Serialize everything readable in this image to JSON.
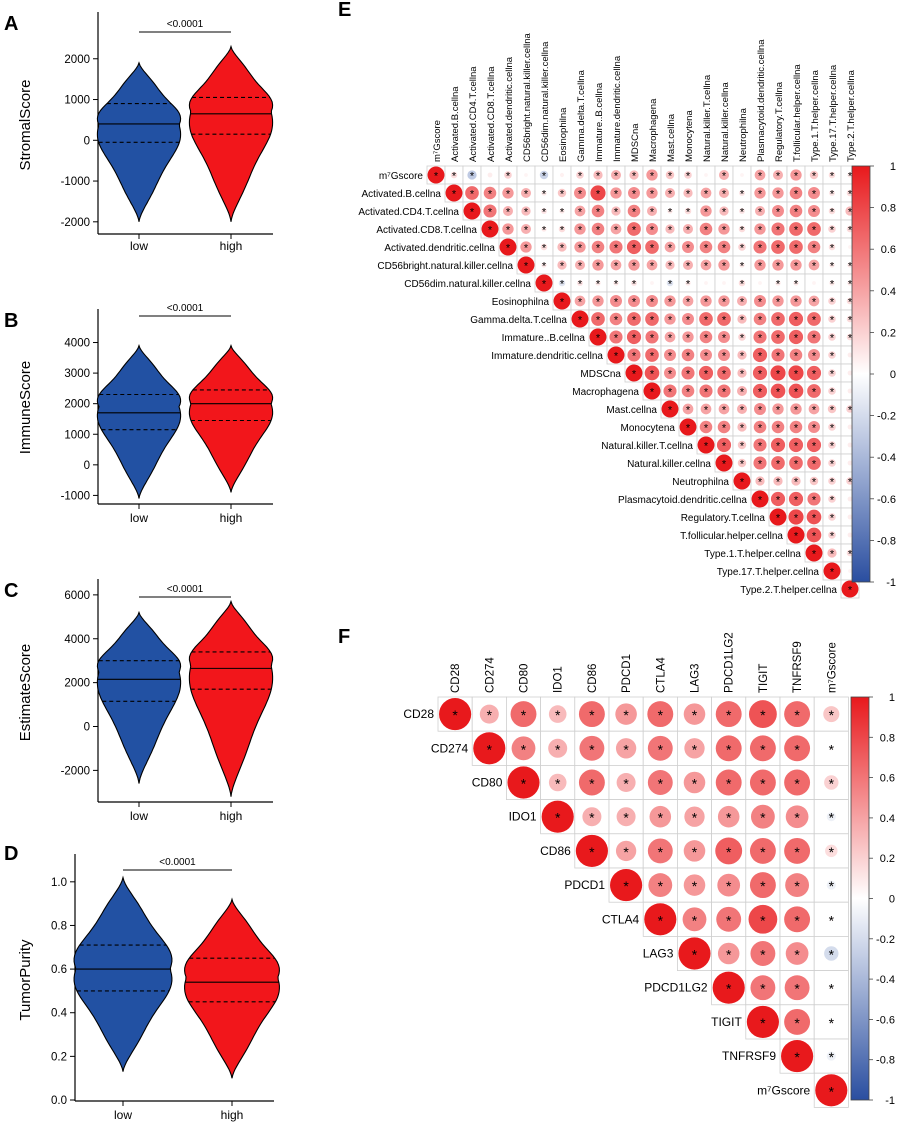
{
  "colors": {
    "low": "#2251a3",
    "high": "#f2161b",
    "pos": "#e8191c",
    "neg": "#2a4ea0",
    "grid": "#cfcfcf",
    "ink": "#000000"
  },
  "chart_data": [
    {
      "panel": "A",
      "type": "violin",
      "ylabel": "StromalScore",
      "categories": [
        "low",
        "high"
      ],
      "yticks": [
        "2000",
        "1000",
        "0",
        "-1000",
        "-2000"
      ],
      "ylim": [
        -2250,
        3000
      ],
      "pvalue": "<0.0001",
      "groups": [
        {
          "name": "low",
          "min": -2000,
          "max": 1900,
          "q1": -50,
          "median": 400,
          "q3": 900,
          "mode": 380,
          "width": 1
        },
        {
          "name": "high",
          "min": -2000,
          "max": 2300,
          "q1": 150,
          "median": 650,
          "q3": 1050,
          "mode": 700,
          "width": 1
        }
      ]
    },
    {
      "panel": "B",
      "type": "violin",
      "ylabel": "ImmuneScore",
      "categories": [
        "low",
        "high"
      ],
      "yticks": [
        "4000",
        "3000",
        "2000",
        "1000",
        "0",
        "-1000"
      ],
      "ylim": [
        -1150,
        4900
      ],
      "pvalue": "<0.0001",
      "groups": [
        {
          "name": "low",
          "min": -1100,
          "max": 3900,
          "q1": 1150,
          "median": 1700,
          "q3": 2300,
          "mode": 1900,
          "width": 1
        },
        {
          "name": "high",
          "min": -900,
          "max": 3900,
          "q1": 1450,
          "median": 2000,
          "q3": 2450,
          "mode": 2000,
          "width": 1
        }
      ]
    },
    {
      "panel": "C",
      "type": "violin",
      "ylabel": "EstimateScore",
      "categories": [
        "low",
        "high"
      ],
      "yticks": [
        "6000",
        "4000",
        "2000",
        "0",
        "-2000"
      ],
      "ylim": [
        -3350,
        6450
      ],
      "pvalue": "<0.0001",
      "groups": [
        {
          "name": "low",
          "min": -2600,
          "max": 5200,
          "q1": 1150,
          "median": 2150,
          "q3": 3000,
          "mode": 2500,
          "width": 1
        },
        {
          "name": "high",
          "min": -3200,
          "max": 5700,
          "q1": 1700,
          "median": 2650,
          "q3": 3400,
          "mode": 2800,
          "width": 1
        }
      ]
    },
    {
      "panel": "D",
      "type": "violin",
      "ylabel": "TumorPurity",
      "categories": [
        "low",
        "high"
      ],
      "yticks": [
        "1.0",
        "0.8",
        "0.6",
        "0.4",
        "0.2",
        "0.0"
      ],
      "ylim": [
        0,
        1.1
      ],
      "pvalue": "<0.0001",
      "groups": [
        {
          "name": "low",
          "min": 0.13,
          "max": 1.02,
          "q1": 0.5,
          "median": 0.6,
          "q3": 0.71,
          "mode": 0.6,
          "width": 1
        },
        {
          "name": "high",
          "min": 0.1,
          "max": 0.92,
          "q1": 0.45,
          "median": 0.54,
          "q3": 0.65,
          "mode": 0.56,
          "width": 0.97
        }
      ]
    },
    {
      "panel": "E",
      "type": "heatmap",
      "labels": [
        "m⁷Gscore",
        "Activated.B.cellna",
        "Activated.CD4.T.cellna",
        "Activated.CD8.T.cellna",
        "Activated.dendritic.cellna",
        "CD56bright.natural.killer.cellna",
        "CD56dim.natural.killer.cellna",
        "Eosinophilna",
        "Gamma.delta.T.cellna",
        "Immature..B.cellna",
        "Immature.dendritic.cellna",
        "MDSCna",
        "Macrophagena",
        "Mast.cellna",
        "Monocytena",
        "Natural.killer.T.cellna",
        "Natural.killer.cellna",
        "Neutrophilna",
        "Plasmacytoid.dendritic.cellna",
        "Regulatory.T.cellna",
        "T.follicular.helper.cellna",
        "Type.1.T.helper.cellna",
        "Type.17.T.helper.cellna",
        "Type.2.T.helper.cellna"
      ],
      "scale_ticks": [
        "1",
        "0.8",
        "0.6",
        "0.4",
        "0.2",
        "0",
        "-0.2",
        "-0.4",
        "-0.6",
        "-0.8",
        "-1"
      ],
      "rows": [
        [
          1,
          0.15,
          -0.3,
          0.08,
          0.2,
          0.05,
          -0.25,
          0.06,
          0.2,
          0.3,
          0.35,
          0.3,
          0.45,
          0.25,
          0.2,
          0.05,
          0.35,
          0.05,
          0.4,
          0.35,
          0.45,
          0.25,
          0.15,
          0.1
        ],
        [
          null,
          1,
          0.65,
          0.55,
          0.45,
          0.35,
          0.1,
          0.25,
          0.5,
          0.8,
          0.45,
          0.5,
          0.45,
          0.35,
          0.3,
          0.4,
          0.35,
          0.12,
          0.45,
          0.45,
          0.55,
          0.5,
          0.12,
          0.15
        ],
        [
          null,
          null,
          1,
          0.6,
          0.35,
          0.3,
          0.12,
          0.1,
          0.4,
          0.55,
          0.3,
          0.55,
          0.35,
          0.1,
          0.15,
          0.45,
          0.3,
          0.12,
          0.35,
          0.5,
          0.55,
          0.5,
          0.15,
          0.3
        ],
        [
          null,
          null,
          null,
          1,
          0.45,
          0.35,
          0.1,
          0.15,
          0.45,
          0.55,
          0.4,
          0.65,
          0.5,
          0.3,
          0.35,
          0.55,
          0.45,
          0.15,
          0.45,
          0.6,
          0.65,
          0.65,
          0.2,
          0.15
        ],
        [
          null,
          null,
          null,
          null,
          1,
          0.45,
          0.15,
          0.3,
          0.45,
          0.55,
          0.6,
          0.7,
          0.65,
          0.4,
          0.5,
          0.55,
          0.55,
          0.2,
          0.6,
          0.65,
          0.65,
          0.55,
          0.15,
          0.05
        ],
        [
          null,
          null,
          null,
          null,
          null,
          1,
          0.1,
          0.3,
          0.35,
          0.45,
          0.4,
          0.45,
          0.4,
          0.3,
          0.35,
          0.4,
          0.45,
          0.1,
          0.45,
          0.45,
          0.45,
          0.4,
          0.1,
          0.1
        ],
        [
          null,
          null,
          null,
          null,
          null,
          null,
          1,
          -0.15,
          0.12,
          0.1,
          0.1,
          0.12,
          0.05,
          -0.15,
          0.1,
          0.05,
          0.05,
          0.15,
          0.05,
          0.1,
          0.1,
          0.05,
          0.1,
          0.1
        ],
        [
          null,
          null,
          null,
          null,
          null,
          null,
          null,
          1,
          0.4,
          0.45,
          0.5,
          0.5,
          0.5,
          0.45,
          0.4,
          0.45,
          0.45,
          0.35,
          0.5,
          0.45,
          0.45,
          0.4,
          0.2,
          0.15
        ],
        [
          null,
          null,
          null,
          null,
          null,
          null,
          null,
          null,
          1,
          0.65,
          0.55,
          0.65,
          0.65,
          0.45,
          0.5,
          0.65,
          0.65,
          0.3,
          0.55,
          0.65,
          0.7,
          0.65,
          0.2,
          0.15
        ],
        [
          null,
          null,
          null,
          null,
          null,
          null,
          null,
          null,
          null,
          1,
          0.6,
          0.7,
          0.6,
          0.4,
          0.45,
          0.55,
          0.5,
          0.2,
          0.6,
          0.65,
          0.7,
          0.6,
          0.2,
          0.15
        ],
        [
          null,
          null,
          null,
          null,
          null,
          null,
          null,
          null,
          null,
          null,
          1,
          0.6,
          0.65,
          0.5,
          0.55,
          0.5,
          0.5,
          0.3,
          0.7,
          0.6,
          0.55,
          0.5,
          0.2,
          0.08
        ],
        [
          null,
          null,
          null,
          null,
          null,
          null,
          null,
          null,
          null,
          null,
          null,
          1,
          0.75,
          0.5,
          0.6,
          0.7,
          0.65,
          0.3,
          0.7,
          0.8,
          0.8,
          0.7,
          0.2,
          0.08
        ],
        [
          null,
          null,
          null,
          null,
          null,
          null,
          null,
          null,
          null,
          null,
          null,
          null,
          1,
          0.6,
          0.55,
          0.6,
          0.6,
          0.35,
          0.7,
          0.75,
          0.75,
          0.65,
          0.2,
          0.08
        ],
        [
          null,
          null,
          null,
          null,
          null,
          null,
          null,
          null,
          null,
          null,
          null,
          null,
          null,
          1,
          0.4,
          0.4,
          0.4,
          0.35,
          0.5,
          0.45,
          0.45,
          0.4,
          0.25,
          0.2
        ],
        [
          null,
          null,
          null,
          null,
          null,
          null,
          null,
          null,
          null,
          null,
          null,
          null,
          null,
          null,
          1,
          0.55,
          0.55,
          0.3,
          0.55,
          0.55,
          0.55,
          0.5,
          0.2,
          0.08
        ],
        [
          null,
          null,
          null,
          null,
          null,
          null,
          null,
          null,
          null,
          null,
          null,
          null,
          null,
          null,
          null,
          1,
          0.7,
          0.25,
          0.6,
          0.7,
          0.7,
          0.7,
          0.2,
          0.08
        ],
        [
          null,
          null,
          null,
          null,
          null,
          null,
          null,
          null,
          null,
          null,
          null,
          null,
          null,
          null,
          null,
          null,
          1,
          0.25,
          0.6,
          0.65,
          0.65,
          0.65,
          0.2,
          0.08
        ],
        [
          null,
          null,
          null,
          null,
          null,
          null,
          null,
          null,
          null,
          null,
          null,
          null,
          null,
          null,
          null,
          null,
          null,
          1,
          0.3,
          0.3,
          0.3,
          0.25,
          0.2,
          0.2
        ],
        [
          null,
          null,
          null,
          null,
          null,
          null,
          null,
          null,
          null,
          null,
          null,
          null,
          null,
          null,
          null,
          null,
          null,
          null,
          1,
          0.7,
          0.7,
          0.6,
          0.2,
          0.08
        ],
        [
          null,
          null,
          null,
          null,
          null,
          null,
          null,
          null,
          null,
          null,
          null,
          null,
          null,
          null,
          null,
          null,
          null,
          null,
          null,
          1,
          0.8,
          0.75,
          0.2,
          0.08
        ],
        [
          null,
          null,
          null,
          null,
          null,
          null,
          null,
          null,
          null,
          null,
          null,
          null,
          null,
          null,
          null,
          null,
          null,
          null,
          null,
          null,
          1,
          0.75,
          0.2,
          0.08
        ],
        [
          null,
          null,
          null,
          null,
          null,
          null,
          null,
          null,
          null,
          null,
          null,
          null,
          null,
          null,
          null,
          null,
          null,
          null,
          null,
          null,
          null,
          1,
          0.3,
          0.15
        ],
        [
          null,
          null,
          null,
          null,
          null,
          null,
          null,
          null,
          null,
          null,
          null,
          null,
          null,
          null,
          null,
          null,
          null,
          null,
          null,
          null,
          null,
          null,
          1,
          0.05
        ],
        [
          null,
          null,
          null,
          null,
          null,
          null,
          null,
          null,
          null,
          null,
          null,
          null,
          null,
          null,
          null,
          null,
          null,
          null,
          null,
          null,
          null,
          null,
          null,
          1
        ]
      ]
    },
    {
      "panel": "F",
      "type": "heatmap",
      "labels": [
        "CD28",
        "CD274",
        "CD80",
        "IDO1",
        "CD86",
        "PDCD1",
        "CTLA4",
        "LAG3",
        "PDCD1LG2",
        "TIGIT",
        "TNFRSF9",
        "m⁷Gscore"
      ],
      "scale_ticks": [
        "1",
        "0.8",
        "0.6",
        "0.4",
        "0.2",
        "0",
        "-0.2",
        "-0.4",
        "-0.6",
        "-0.8",
        "-1"
      ],
      "rows": [
        [
          1,
          0.35,
          0.65,
          0.3,
          0.65,
          0.45,
          0.65,
          0.45,
          0.65,
          0.75,
          0.65,
          0.25
        ],
        [
          null,
          1,
          0.55,
          0.35,
          0.6,
          0.4,
          0.6,
          0.4,
          0.65,
          0.65,
          0.65,
          0.02
        ],
        [
          null,
          null,
          1,
          0.3,
          0.65,
          0.35,
          0.6,
          0.45,
          0.65,
          0.65,
          0.65,
          0.2
        ],
        [
          null,
          null,
          null,
          1,
          0.35,
          0.35,
          0.45,
          0.4,
          0.45,
          0.55,
          0.5,
          -0.08
        ],
        [
          null,
          null,
          null,
          null,
          1,
          0.4,
          0.6,
          0.45,
          0.7,
          0.65,
          0.65,
          0.15
        ],
        [
          null,
          null,
          null,
          null,
          null,
          1,
          0.55,
          0.45,
          0.5,
          0.65,
          0.55,
          -0.08
        ],
        [
          null,
          null,
          null,
          null,
          null,
          null,
          1,
          0.55,
          0.6,
          0.8,
          0.65,
          0.02
        ],
        [
          null,
          null,
          null,
          null,
          null,
          null,
          null,
          1,
          0.45,
          0.6,
          0.5,
          -0.2
        ],
        [
          null,
          null,
          null,
          null,
          null,
          null,
          null,
          null,
          1,
          0.6,
          0.6,
          0.02
        ],
        [
          null,
          null,
          null,
          null,
          null,
          null,
          null,
          null,
          null,
          1,
          0.65,
          0.02
        ],
        [
          null,
          null,
          null,
          null,
          null,
          null,
          null,
          null,
          null,
          null,
          1,
          -0.08
        ],
        [
          null,
          null,
          null,
          null,
          null,
          null,
          null,
          null,
          null,
          null,
          null,
          1
        ]
      ]
    }
  ]
}
